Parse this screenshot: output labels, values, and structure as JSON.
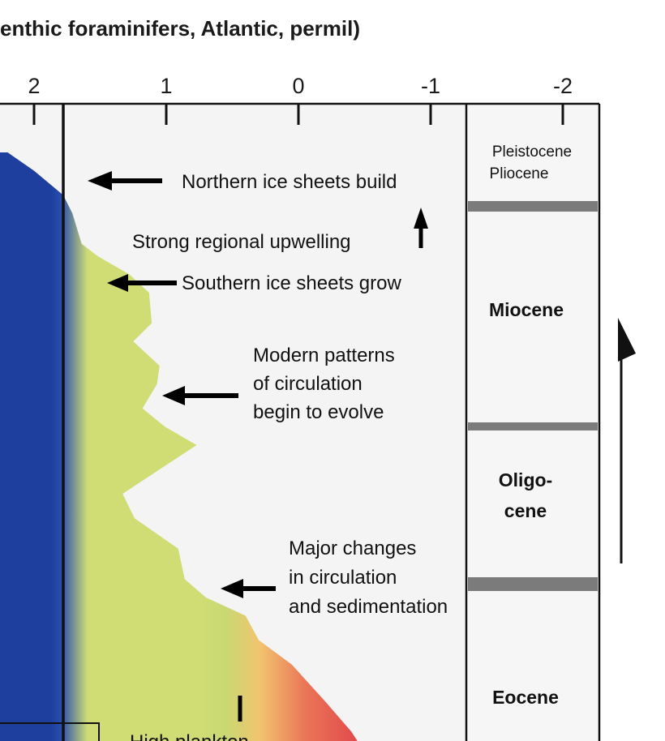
{
  "chart_data": {
    "type": "area",
    "title": "enthic foraminifers, Atlantic, permil)",
    "x_ticks": [
      {
        "value": 2,
        "label": "2"
      },
      {
        "value": 1,
        "label": "1"
      },
      {
        "value": 0,
        "label": "0"
      },
      {
        "value": -1,
        "label": "-1"
      },
      {
        "value": -2,
        "label": "-2"
      }
    ],
    "x_axis_reversed": true,
    "age_axis": "down",
    "curve_right_edge": [
      {
        "row": 0.0,
        "value": 2.2
      },
      {
        "row": 0.03,
        "value": 2.0
      },
      {
        "row": 0.07,
        "value": 1.78
      },
      {
        "row": 0.1,
        "value": 1.71
      },
      {
        "row": 0.15,
        "value": 1.64
      },
      {
        "row": 0.17,
        "value": 1.52
      },
      {
        "row": 0.2,
        "value": 1.28
      },
      {
        "row": 0.23,
        "value": 1.13
      },
      {
        "row": 0.28,
        "value": 1.11
      },
      {
        "row": 0.31,
        "value": 1.25
      },
      {
        "row": 0.35,
        "value": 1.05
      },
      {
        "row": 0.38,
        "value": 1.07
      },
      {
        "row": 0.42,
        "value": 1.18
      },
      {
        "row": 0.45,
        "value": 1.01
      },
      {
        "row": 0.48,
        "value": 0.77
      },
      {
        "row": 0.52,
        "value": 1.05
      },
      {
        "row": 0.56,
        "value": 1.33
      },
      {
        "row": 0.6,
        "value": 1.24
      },
      {
        "row": 0.65,
        "value": 0.91
      },
      {
        "row": 0.7,
        "value": 0.86
      },
      {
        "row": 0.73,
        "value": 0.7
      },
      {
        "row": 0.76,
        "value": 0.4
      },
      {
        "row": 0.8,
        "value": 0.3
      },
      {
        "row": 0.84,
        "value": 0.05
      },
      {
        "row": 0.9,
        "value": -0.2
      },
      {
        "row": 0.95,
        "value": -0.4
      },
      {
        "row": 1.0,
        "value": -0.55
      }
    ],
    "colors": {
      "cold": "#1e3f9e",
      "mid": "#cfdd74",
      "warm": "#f0c070",
      "hot": "#e24a4c"
    },
    "epochs": [
      {
        "lines": [
          "Pleistocene",
          "Pliocene"
        ],
        "style": "small"
      },
      {
        "lines": [
          "Miocene"
        ],
        "style": "bold"
      },
      {
        "lines": [
          "Oligo-",
          "cene"
        ],
        "style": "bold"
      },
      {
        "lines": [
          "Eocene"
        ],
        "style": "bold"
      }
    ],
    "annotations": [
      {
        "lines": [
          "Northern ice sheets build"
        ],
        "arrow": "left"
      },
      {
        "lines": [
          "Strong regional upwelling"
        ],
        "arrow": "up"
      },
      {
        "lines": [
          "Southern ice sheets grow"
        ],
        "arrow": "left"
      },
      {
        "lines": [
          "Modern patterns",
          "of circulation",
          "begin to evolve"
        ],
        "arrow": "left"
      },
      {
        "lines": [
          "Major changes",
          "in circulation",
          "and sedimentation"
        ],
        "arrow": "left"
      },
      {
        "lines": [
          "High plankton"
        ],
        "arrow": "up"
      }
    ]
  }
}
